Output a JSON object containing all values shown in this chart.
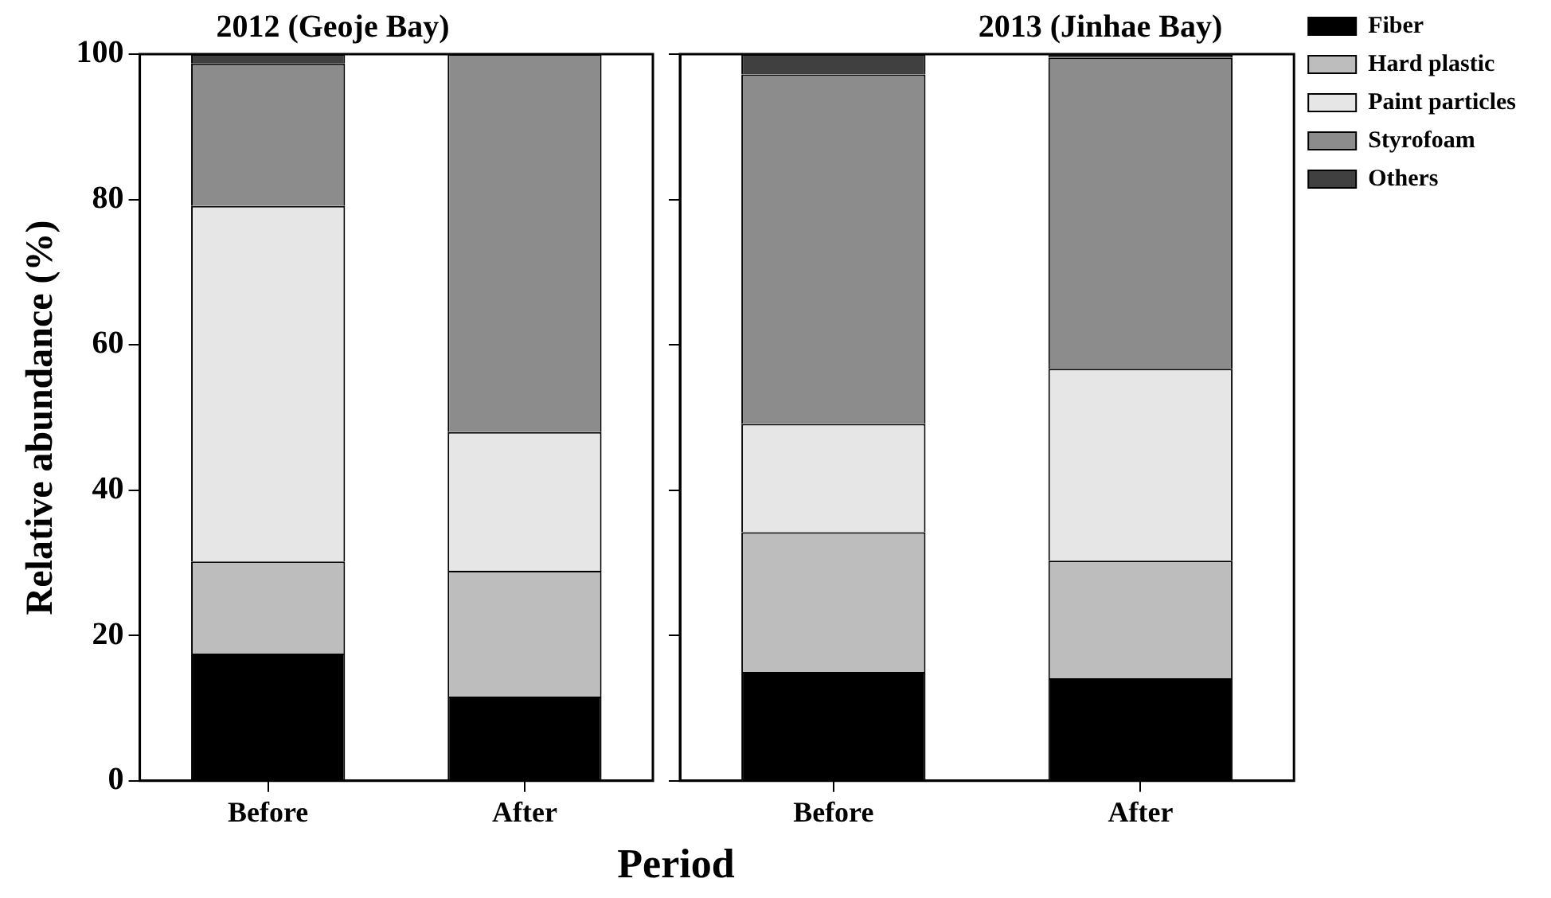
{
  "chart_data": [
    {
      "type": "bar",
      "title": "2012 (Geoje Bay)",
      "ylabel": "Relative abundance (%)",
      "xlabel": "Period",
      "stacked": true,
      "categories": [
        "Before",
        "After"
      ],
      "ylim": [
        0,
        100
      ],
      "yticks": [
        0,
        20,
        40,
        60,
        80,
        100
      ],
      "legend": false,
      "series": [
        {
          "color": "#000000",
          "values": [
            17.5,
            11.6
          ]
        },
        {
          "color": "#bdbdbd",
          "values": [
            12.7,
            17.3
          ]
        },
        {
          "color": "#e6e6e6",
          "values": [
            48.9,
            19.1
          ]
        },
        {
          "color": "#8c8c8c",
          "values": [
            19.6,
            52.0
          ]
        },
        {
          "color": "#404040",
          "values": [
            1.3,
            0
          ]
        }
      ]
    },
    {
      "type": "bar",
      "title": "2013 (Jinhae Bay)",
      "stacked": true,
      "categories": [
        "Before",
        "After"
      ],
      "ylim": [
        0,
        100
      ],
      "yticks": [
        0,
        20,
        40,
        60,
        80,
        100
      ],
      "tick_labels": "x",
      "legend": "right",
      "series": [
        {
          "name": "Fiber",
          "color": "#000000",
          "values": [
            15.0,
            14.1
          ]
        },
        {
          "name": "Hard plastic",
          "color": "#bdbdbd",
          "values": [
            19.2,
            16.2
          ]
        },
        {
          "name": "Paint particles",
          "color": "#e6e6e6",
          "values": [
            14.9,
            26.4
          ]
        },
        {
          "name": "Styrofoam",
          "color": "#8c8c8c",
          "values": [
            48.1,
            42.8
          ]
        },
        {
          "name": "Others",
          "color": "#404040",
          "values": [
            2.8,
            0.5
          ]
        }
      ]
    }
  ]
}
